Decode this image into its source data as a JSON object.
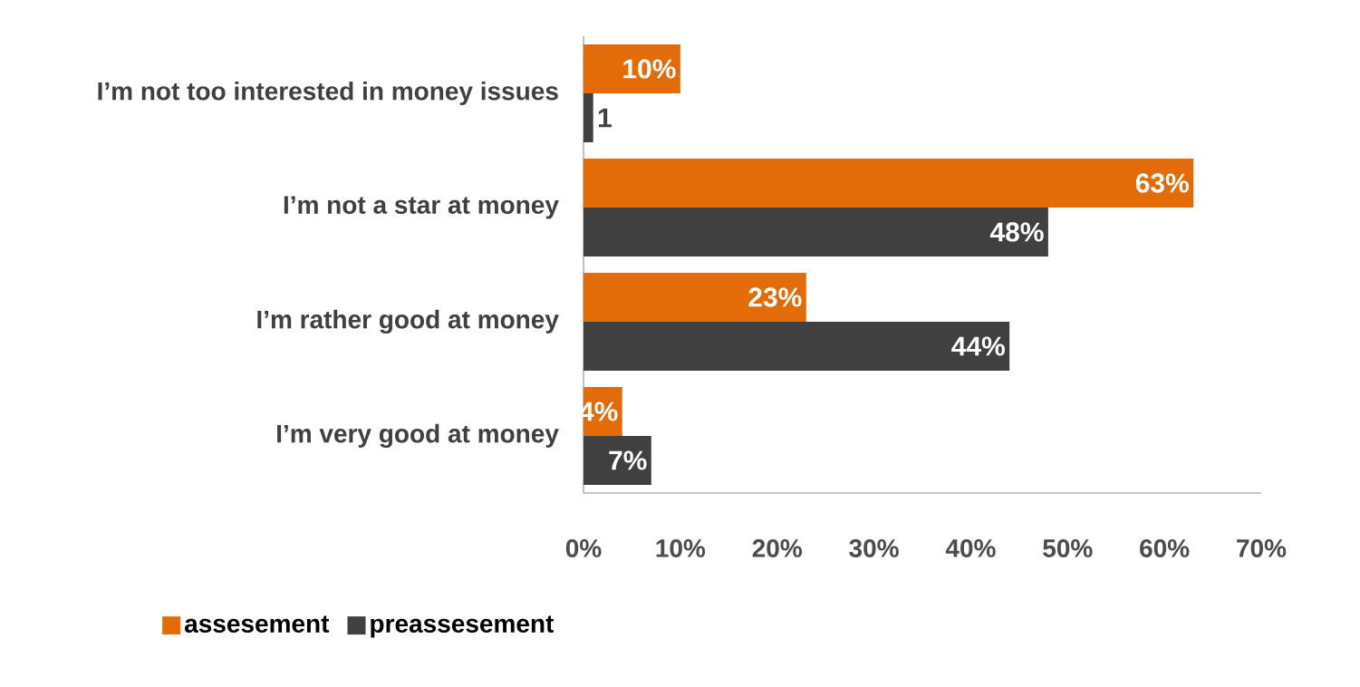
{
  "chart_data": {
    "type": "bar",
    "orientation": "horizontal",
    "categories": [
      "I’m not too interested in money issues",
      "I’m not a star at money",
      "I’m rather good at money",
      "I’m very good at money"
    ],
    "series": [
      {
        "name": "assesement",
        "color": "#e36c09",
        "values": [
          10,
          63,
          23,
          4
        ],
        "value_labels": [
          "10%",
          "63%",
          "23%",
          "4%"
        ]
      },
      {
        "name": "preassesement",
        "color": "#404040",
        "values": [
          1,
          48,
          44,
          7
        ],
        "value_labels": [
          "1",
          "48%",
          "44%",
          "7%"
        ]
      }
    ],
    "xlim": [
      0,
      70
    ],
    "xticks": [
      {
        "value": 0,
        "label": "0%"
      },
      {
        "value": 10,
        "label": "10%"
      },
      {
        "value": 20,
        "label": "20%"
      },
      {
        "value": 30,
        "label": "30%"
      },
      {
        "value": 40,
        "label": "40%"
      },
      {
        "value": 50,
        "label": "50%"
      },
      {
        "value": 60,
        "label": "60%"
      },
      {
        "value": 70,
        "label": "70%"
      }
    ],
    "legend": "bottom"
  }
}
